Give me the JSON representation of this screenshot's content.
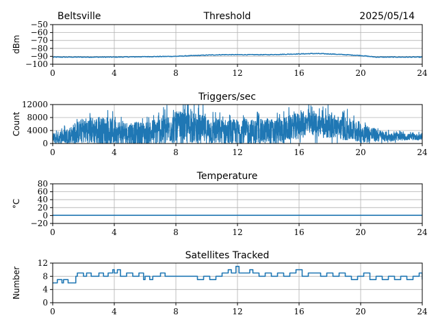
{
  "figure": {
    "header_left": "Beltsville",
    "header_right": "2025/05/14"
  },
  "colors": {
    "line": "#1f77b4",
    "grid": "#b0b0b0",
    "axis": "#000000"
  },
  "chart_data": [
    {
      "type": "line",
      "title": "Threshold",
      "xlabel": "",
      "ylabel": "dBm",
      "xlim": [
        0,
        24
      ],
      "ylim": [
        -100,
        -50
      ],
      "xticks": [
        0,
        4,
        8,
        12,
        16,
        20,
        24
      ],
      "yticks": [
        -50,
        -60,
        -70,
        -80,
        -90,
        -100
      ],
      "ytick_labels": [
        "−50",
        "−60",
        "−70",
        "−80",
        "−90",
        "−100"
      ],
      "series": [
        {
          "name": "threshold",
          "style": "line",
          "x": [
            0,
            2,
            4,
            6,
            8,
            10,
            11,
            12,
            14,
            16,
            17,
            18,
            19,
            20,
            20.5,
            21,
            22,
            24
          ],
          "y": [
            -91,
            -91,
            -91,
            -90.5,
            -90,
            -88.5,
            -88,
            -88,
            -88,
            -87,
            -86.5,
            -87,
            -88,
            -89,
            -90,
            -91,
            -91,
            -91
          ]
        }
      ]
    },
    {
      "type": "line",
      "title": "Triggers/sec",
      "xlabel": "",
      "ylabel": "Count",
      "xlim": [
        0,
        24
      ],
      "ylim": [
        0,
        12000
      ],
      "xticks": [
        0,
        4,
        8,
        12,
        16,
        20,
        24
      ],
      "yticks": [
        0,
        4000,
        8000,
        12000
      ],
      "ytick_labels": [
        "0",
        "4000",
        "8000",
        "12000"
      ],
      "series": [
        {
          "name": "triggers",
          "style": "noisy",
          "x": [
            0,
            1,
            2,
            3,
            4,
            5,
            6,
            7,
            8,
            9,
            10,
            11,
            12,
            13,
            14,
            15,
            16,
            17,
            18,
            19,
            20,
            21,
            22,
            23,
            24
          ],
          "y": [
            1500,
            2500,
            4000,
            4000,
            3500,
            3000,
            3000,
            4000,
            5000,
            5000,
            4000,
            3500,
            3500,
            3500,
            3500,
            4000,
            6000,
            6000,
            5500,
            4500,
            3500,
            2500,
            2000,
            2000,
            2000
          ],
          "spread": [
            2000,
            3000,
            5000,
            5500,
            5000,
            4500,
            4500,
            5500,
            6000,
            6000,
            5500,
            5000,
            5000,
            5000,
            5000,
            5000,
            4500,
            4500,
            4500,
            4500,
            4000,
            2500,
            1500,
            1200,
            1200
          ]
        }
      ]
    },
    {
      "type": "line",
      "title": "Temperature",
      "xlabel": "",
      "ylabel": "°C",
      "xlim": [
        0,
        24
      ],
      "ylim": [
        -20,
        80
      ],
      "xticks": [
        0,
        4,
        8,
        12,
        16,
        20,
        24
      ],
      "yticks": [
        80,
        60,
        40,
        20,
        0,
        -20
      ],
      "ytick_labels": [
        "80",
        "60",
        "40",
        "20",
        "0",
        "−20"
      ],
      "series": [
        {
          "name": "temperature",
          "style": "line",
          "x": [
            0,
            24
          ],
          "y": [
            0.5,
            0.5
          ]
        }
      ]
    },
    {
      "type": "line",
      "title": "Satellites Tracked",
      "xlabel": "",
      "ylabel": "Number",
      "xlim": [
        0,
        24
      ],
      "ylim": [
        0,
        12
      ],
      "xticks": [
        0,
        4,
        8,
        12,
        16,
        20,
        24
      ],
      "yticks": [
        0,
        4,
        8,
        12
      ],
      "ytick_labels": [
        "0",
        "4",
        "8",
        "12"
      ],
      "series": [
        {
          "name": "satellites",
          "style": "step",
          "x": [
            0,
            0.3,
            0.6,
            0.7,
            1.0,
            1.3,
            1.5,
            1.6,
            2.0,
            2.2,
            2.5,
            3.0,
            3.3,
            3.6,
            3.9,
            4.0,
            4.2,
            4.4,
            4.8,
            5.2,
            5.6,
            5.9,
            6.0,
            6.3,
            6.5,
            7.0,
            7.3,
            7.6,
            8.0,
            8.5,
            9.0,
            9.4,
            9.8,
            10.2,
            10.6,
            11.0,
            11.4,
            11.6,
            11.9,
            12.1,
            12.4,
            12.8,
            13.0,
            13.4,
            13.8,
            14.2,
            14.6,
            15.0,
            15.4,
            15.8,
            16.2,
            16.6,
            17.0,
            17.4,
            17.8,
            18.2,
            18.6,
            19.0,
            19.4,
            19.8,
            20.2,
            20.6,
            21.0,
            21.4,
            21.8,
            22.2,
            22.6,
            23.0,
            23.4,
            23.8,
            24
          ],
          "y": [
            6,
            7,
            6,
            7,
            6,
            6,
            8,
            9,
            8,
            9,
            8,
            9,
            8,
            9,
            10,
            9,
            10,
            8,
            9,
            8,
            9,
            7,
            8,
            7,
            8,
            9,
            8,
            8,
            8,
            8,
            8,
            7,
            8,
            7,
            8,
            9,
            10,
            9,
            11,
            9,
            9,
            10,
            9,
            8,
            9,
            8,
            9,
            8,
            9,
            10,
            8,
            9,
            9,
            8,
            9,
            8,
            9,
            8,
            7,
            8,
            9,
            7,
            8,
            7,
            8,
            7,
            8,
            7,
            8,
            9,
            7
          ]
        }
      ]
    }
  ]
}
